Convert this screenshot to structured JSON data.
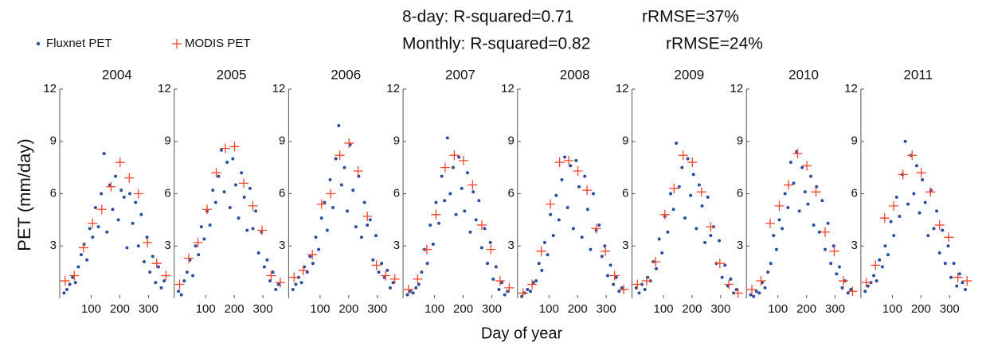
{
  "annotations": [
    "8-day: R-squared=0.71",
    "rRMSE=37%",
    "Monthly: R-squared=0.82",
    "rRMSE=24%"
  ],
  "y_label": "PET (mm/day)",
  "x_label": "Day of year",
  "chart_data": [
    {
      "type": "scatter",
      "title": "2004",
      "xlim": [
        -10,
        390
      ],
      "xticks": [
        100,
        200,
        300
      ],
      "ylim": [
        0,
        12
      ],
      "yticks": [
        3,
        6,
        9,
        12
      ],
      "series": [
        {
          "name": "Fluxnet PET",
          "color": "#2b4f9e",
          "x": [
            5,
            15,
            25,
            35,
            45,
            55,
            65,
            75,
            85,
            95,
            105,
            115,
            125,
            135,
            145,
            155,
            165,
            175,
            185,
            195,
            205,
            215,
            225,
            235,
            245,
            255,
            265,
            275,
            285,
            295,
            305,
            315,
            325,
            335,
            345,
            355
          ],
          "values": [
            0.3,
            0.5,
            0.8,
            1.2,
            0.9,
            1.8,
            2.5,
            3.1,
            2.2,
            4.0,
            3.5,
            5.2,
            4.1,
            6.0,
            8.3,
            3.8,
            6.5,
            5.1,
            7.0,
            4.5,
            6.2,
            5.8,
            2.9,
            6.0,
            4.3,
            5.5,
            3.0,
            4.8,
            2.1,
            3.5,
            1.5,
            2.4,
            0.9,
            1.8,
            0.6,
            1.0
          ]
        },
        {
          "name": "MODIS PET",
          "color": "#f0452d",
          "x": [
            9,
            41,
            73,
            105,
            137,
            169,
            201,
            233,
            265,
            297,
            329,
            361
          ],
          "values": [
            1.0,
            1.3,
            2.9,
            4.3,
            5.1,
            6.4,
            7.8,
            6.9,
            6.0,
            3.2,
            2.0,
            1.3
          ]
        }
      ]
    },
    {
      "type": "scatter",
      "title": "2005",
      "xlim": [
        -10,
        390
      ],
      "xticks": [
        100,
        200,
        300
      ],
      "ylim": [
        0,
        12
      ],
      "yticks": [
        3,
        6,
        9,
        12
      ],
      "series": [
        {
          "name": "Fluxnet PET",
          "color": "#2b4f9e",
          "x": [
            5,
            15,
            25,
            35,
            45,
            55,
            65,
            75,
            85,
            95,
            105,
            115,
            125,
            135,
            145,
            155,
            165,
            175,
            185,
            195,
            205,
            215,
            225,
            235,
            245,
            255,
            265,
            275,
            285,
            295,
            305,
            315,
            325,
            335,
            345,
            355
          ],
          "values": [
            0.4,
            0.2,
            1.0,
            1.5,
            2.2,
            1.3,
            3.0,
            2.5,
            4.1,
            3.4,
            5.0,
            4.2,
            6.2,
            5.5,
            7.0,
            8.5,
            6.1,
            7.8,
            5.2,
            8.0,
            6.5,
            4.6,
            7.2,
            5.8,
            3.9,
            6.3,
            4.0,
            5.0,
            2.6,
            3.8,
            1.8,
            2.2,
            1.0,
            1.5,
            0.5,
            0.8
          ]
        },
        {
          "name": "MODIS PET",
          "color": "#f0452d",
          "x": [
            9,
            41,
            73,
            105,
            137,
            169,
            201,
            233,
            265,
            297,
            329,
            361
          ],
          "values": [
            0.8,
            2.3,
            3.2,
            5.1,
            7.2,
            8.6,
            8.7,
            6.6,
            5.3,
            3.9,
            1.3,
            0.9
          ]
        }
      ]
    },
    {
      "type": "scatter",
      "title": "2006",
      "xlim": [
        -10,
        390
      ],
      "xticks": [
        100,
        200,
        300
      ],
      "ylim": [
        0,
        12
      ],
      "yticks": [
        3,
        6,
        9,
        12
      ],
      "series": [
        {
          "name": "Fluxnet PET",
          "color": "#2b4f9e",
          "x": [
            5,
            15,
            25,
            35,
            45,
            55,
            65,
            75,
            85,
            95,
            105,
            115,
            125,
            135,
            145,
            155,
            165,
            175,
            185,
            195,
            205,
            215,
            225,
            235,
            245,
            255,
            265,
            275,
            285,
            295,
            305,
            315,
            325,
            335,
            345,
            355
          ],
          "values": [
            0.5,
            0.8,
            1.2,
            0.9,
            1.8,
            1.5,
            2.4,
            2.0,
            3.5,
            2.8,
            4.6,
            5.5,
            3.9,
            6.8,
            5.2,
            8.0,
            9.9,
            6.5,
            7.5,
            5.0,
            8.8,
            6.2,
            4.1,
            7.0,
            3.5,
            5.5,
            4.2,
            4.5,
            2.2,
            3.6,
            1.5,
            2.0,
            1.2,
            1.6,
            0.6,
            0.9
          ]
        },
        {
          "name": "MODIS PET",
          "color": "#f0452d",
          "x": [
            9,
            41,
            73,
            105,
            137,
            169,
            201,
            233,
            265,
            297,
            329,
            361
          ],
          "values": [
            1.2,
            1.6,
            2.5,
            5.4,
            6.0,
            8.2,
            8.9,
            7.3,
            4.7,
            1.9,
            1.3,
            1.1
          ]
        }
      ]
    },
    {
      "type": "scatter",
      "title": "2007",
      "xlim": [
        -10,
        390
      ],
      "xticks": [
        100,
        200,
        300
      ],
      "ylim": [
        0,
        12
      ],
      "yticks": [
        3,
        6,
        9,
        12
      ],
      "series": [
        {
          "name": "Fluxnet PET",
          "color": "#2b4f9e",
          "x": [
            5,
            15,
            25,
            35,
            45,
            55,
            65,
            75,
            85,
            95,
            105,
            115,
            125,
            135,
            145,
            155,
            165,
            175,
            185,
            195,
            205,
            215,
            225,
            235,
            245,
            255,
            265,
            275,
            285,
            295,
            305,
            315,
            325,
            335,
            345,
            355
          ],
          "values": [
            0.2,
            0.4,
            0.3,
            0.6,
            0.8,
            1.5,
            2.8,
            2.0,
            4.2,
            3.1,
            5.5,
            4.3,
            7.0,
            5.6,
            9.2,
            6.0,
            7.5,
            4.8,
            8.1,
            6.3,
            5.0,
            7.2,
            3.8,
            6.1,
            4.5,
            5.6,
            2.9,
            4.0,
            2.0,
            3.2,
            1.1,
            1.8,
            0.5,
            0.9,
            0.2,
            0.4
          ]
        },
        {
          "name": "MODIS PET",
          "color": "#f0452d",
          "x": [
            9,
            41,
            73,
            105,
            137,
            169,
            201,
            233,
            265,
            297,
            329,
            361
          ],
          "values": [
            0.5,
            1.1,
            2.8,
            4.8,
            7.5,
            8.2,
            7.9,
            6.5,
            4.2,
            2.8,
            1.0,
            0.6
          ]
        }
      ]
    },
    {
      "type": "scatter",
      "title": "2008",
      "xlim": [
        -10,
        390
      ],
      "xticks": [
        100,
        200,
        300
      ],
      "ylim": [
        0,
        12
      ],
      "yticks": [
        3,
        6,
        9,
        12
      ],
      "series": [
        {
          "name": "Fluxnet PET",
          "color": "#2b4f9e",
          "x": [
            5,
            15,
            25,
            35,
            45,
            55,
            65,
            75,
            85,
            95,
            105,
            115,
            125,
            135,
            145,
            155,
            165,
            175,
            185,
            195,
            205,
            215,
            225,
            235,
            245,
            255,
            265,
            275,
            285,
            295,
            305,
            315,
            325,
            335,
            345,
            355
          ],
          "values": [
            0.1,
            0.3,
            0.5,
            0.4,
            0.9,
            1.0,
            2.0,
            1.6,
            3.2,
            2.5,
            4.8,
            3.6,
            5.9,
            4.5,
            6.8,
            8.1,
            5.2,
            7.6,
            4.0,
            7.9,
            6.4,
            3.5,
            7.0,
            5.1,
            2.8,
            6.0,
            3.9,
            4.2,
            2.4,
            3.0,
            1.3,
            1.9,
            0.8,
            1.2,
            0.4,
            0.6
          ]
        },
        {
          "name": "MODIS PET",
          "color": "#f0452d",
          "x": [
            9,
            41,
            73,
            105,
            137,
            169,
            201,
            233,
            265,
            297,
            329,
            361
          ],
          "values": [
            0.3,
            0.8,
            2.7,
            5.4,
            7.8,
            7.9,
            7.3,
            6.2,
            4.0,
            2.7,
            1.3,
            0.5
          ]
        }
      ]
    },
    {
      "type": "scatter",
      "title": "2009",
      "xlim": [
        -10,
        390
      ],
      "xticks": [
        100,
        200,
        300
      ],
      "ylim": [
        0,
        12
      ],
      "yticks": [
        3,
        6,
        9,
        12
      ],
      "series": [
        {
          "name": "Fluxnet PET",
          "color": "#2b4f9e",
          "x": [
            5,
            15,
            25,
            35,
            45,
            55,
            65,
            75,
            85,
            95,
            105,
            115,
            125,
            135,
            145,
            155,
            165,
            175,
            185,
            195,
            205,
            215,
            225,
            235,
            245,
            255,
            265,
            275,
            285,
            295,
            305,
            315,
            325,
            335,
            345,
            355
          ],
          "values": [
            0.6,
            0.3,
            0.8,
            0.5,
            1.2,
            1.0,
            2.1,
            1.7,
            3.4,
            2.6,
            4.7,
            3.8,
            6.0,
            5.1,
            8.9,
            6.4,
            7.5,
            4.6,
            8.0,
            5.9,
            7.1,
            4.0,
            6.5,
            5.3,
            3.2,
            5.8,
            3.6,
            4.1,
            2.0,
            3.3,
            1.2,
            1.9,
            0.7,
            1.1,
            0.3,
            0.5
          ]
        },
        {
          "name": "MODIS PET",
          "color": "#f0452d",
          "x": [
            9,
            41,
            73,
            105,
            137,
            169,
            201,
            233,
            265,
            297,
            329,
            361
          ],
          "values": [
            0.8,
            1.0,
            2.1,
            4.8,
            6.3,
            8.2,
            7.8,
            6.1,
            4.1,
            2.0,
            0.8,
            0.3
          ]
        }
      ]
    },
    {
      "type": "scatter",
      "title": "2010",
      "xlim": [
        -10,
        390
      ],
      "xticks": [
        100,
        200,
        300
      ],
      "ylim": [
        0,
        12
      ],
      "yticks": [
        3,
        6,
        9,
        12
      ],
      "series": [
        {
          "name": "Fluxnet PET",
          "color": "#2b4f9e",
          "x": [
            5,
            15,
            25,
            35,
            45,
            55,
            65,
            75,
            85,
            95,
            105,
            115,
            125,
            135,
            145,
            155,
            165,
            175,
            185,
            195,
            205,
            215,
            225,
            235,
            245,
            255,
            265,
            275,
            285,
            295,
            305,
            315,
            325,
            335,
            345,
            355
          ],
          "values": [
            0.2,
            0.1,
            0.4,
            0.3,
            0.9,
            0.6,
            1.5,
            2.0,
            3.6,
            2.8,
            4.5,
            4.0,
            6.0,
            5.2,
            7.8,
            6.6,
            8.4,
            5.0,
            7.5,
            6.1,
            5.4,
            7.0,
            4.2,
            6.4,
            3.8,
            5.6,
            2.8,
            4.3,
            2.0,
            3.0,
            1.4,
            1.8,
            0.6,
            1.0,
            0.3,
            0.5
          ]
        },
        {
          "name": "MODIS PET",
          "color": "#f0452d",
          "x": [
            9,
            41,
            73,
            105,
            137,
            169,
            201,
            233,
            265,
            297,
            329,
            361
          ],
          "values": [
            0.5,
            1.0,
            4.3,
            5.3,
            6.5,
            8.3,
            7.6,
            6.1,
            3.8,
            2.7,
            1.0,
            0.4
          ]
        }
      ]
    },
    {
      "type": "scatter",
      "title": "2011",
      "xlim": [
        -10,
        390
      ],
      "xticks": [
        100,
        200,
        300
      ],
      "ylim": [
        0,
        12
      ],
      "yticks": [
        3,
        6,
        9,
        12
      ],
      "series": [
        {
          "name": "Fluxnet PET",
          "color": "#2b4f9e",
          "x": [
            5,
            15,
            25,
            35,
            45,
            55,
            65,
            75,
            85,
            95,
            105,
            115,
            125,
            135,
            145,
            155,
            165,
            175,
            185,
            195,
            205,
            215,
            225,
            235,
            245,
            255,
            265,
            275,
            285,
            295,
            305,
            315,
            325,
            335,
            345,
            355
          ],
          "values": [
            0.4,
            0.7,
            0.9,
            1.3,
            1.0,
            2.2,
            1.8,
            3.0,
            2.5,
            4.4,
            3.6,
            5.8,
            4.7,
            7.1,
            9.0,
            5.4,
            8.2,
            6.0,
            7.6,
            4.9,
            6.8,
            5.5,
            3.6,
            6.2,
            4.0,
            5.0,
            2.6,
            3.9,
            2.0,
            3.0,
            1.2,
            2.0,
            0.7,
            1.4,
            0.9,
            0.5
          ]
        },
        {
          "name": "MODIS PET",
          "color": "#f0452d",
          "x": [
            9,
            41,
            73,
            105,
            137,
            169,
            201,
            233,
            265,
            297,
            329,
            361
          ],
          "values": [
            0.9,
            1.9,
            4.6,
            5.3,
            7.1,
            8.2,
            7.2,
            6.1,
            4.2,
            3.5,
            1.2,
            1.0
          ]
        }
      ]
    }
  ]
}
